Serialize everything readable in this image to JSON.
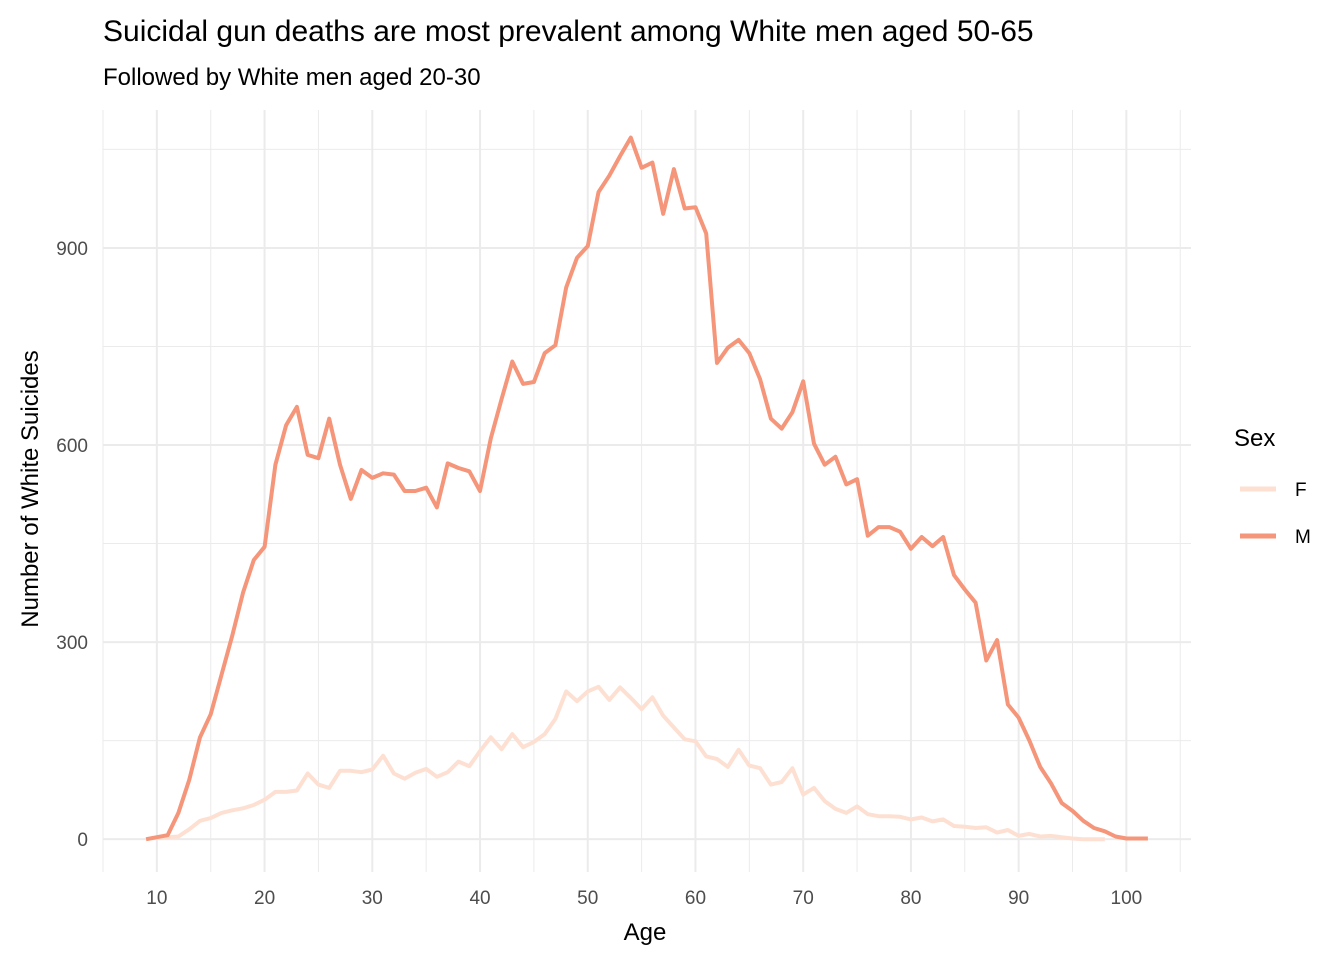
{
  "chart_data": {
    "type": "line",
    "title": "Suicidal gun deaths are most prevalent among White men aged 50-65",
    "subtitle": "Followed by White men aged 20-30",
    "xlabel": "Age",
    "ylabel": "Number of White Suicides",
    "xlim": [
      5,
      106
    ],
    "ylim": [
      -50,
      1110
    ],
    "x_ticks": [
      10,
      20,
      30,
      40,
      50,
      60,
      70,
      80,
      90,
      100
    ],
    "x_tick_labels": [
      "10",
      "20",
      "30",
      "40",
      "50",
      "60",
      "70",
      "80",
      "90",
      "100"
    ],
    "y_ticks": [
      0,
      300,
      600,
      900
    ],
    "y_tick_labels": [
      "0",
      "300",
      "600",
      "900"
    ],
    "grid": true,
    "legend": {
      "title": "Sex",
      "position": "right"
    },
    "series": [
      {
        "name": "F",
        "color": "#fde0d2",
        "x": [
          9,
          10,
          11,
          12,
          13,
          14,
          15,
          16,
          17,
          18,
          19,
          20,
          21,
          22,
          23,
          24,
          25,
          26,
          27,
          28,
          29,
          30,
          31,
          32,
          33,
          34,
          35,
          36,
          37,
          38,
          39,
          40,
          41,
          42,
          43,
          44,
          45,
          46,
          47,
          48,
          49,
          50,
          51,
          52,
          53,
          54,
          55,
          56,
          57,
          58,
          59,
          60,
          61,
          62,
          63,
          64,
          65,
          66,
          67,
          68,
          69,
          70,
          71,
          72,
          73,
          74,
          75,
          76,
          77,
          78,
          79,
          80,
          81,
          82,
          83,
          84,
          85,
          86,
          87,
          88,
          89,
          90,
          91,
          92,
          93,
          94,
          95,
          96,
          97,
          98
        ],
        "y": [
          0,
          2,
          3,
          4,
          15,
          28,
          32,
          40,
          44,
          47,
          52,
          60,
          72,
          72,
          74,
          100,
          83,
          78,
          104,
          104,
          102,
          106,
          127,
          100,
          92,
          101,
          107,
          95,
          102,
          118,
          111,
          134,
          155,
          137,
          160,
          140,
          148,
          160,
          183,
          225,
          210,
          225,
          232,
          212,
          231,
          215,
          198,
          216,
          188,
          170,
          152,
          149,
          126,
          122,
          110,
          136,
          112,
          108,
          83,
          87,
          108,
          68,
          78,
          58,
          46,
          40,
          50,
          38,
          35,
          35,
          34,
          30,
          33,
          27,
          30,
          20,
          19,
          17,
          18,
          10,
          14,
          5,
          8,
          4,
          5,
          3,
          1,
          0,
          0,
          0
        ]
      },
      {
        "name": "M",
        "color": "#f59579",
        "x": [
          9,
          10,
          11,
          12,
          13,
          14,
          15,
          16,
          17,
          18,
          19,
          20,
          21,
          22,
          23,
          24,
          25,
          26,
          27,
          28,
          29,
          30,
          31,
          32,
          33,
          34,
          35,
          36,
          37,
          38,
          39,
          40,
          41,
          42,
          43,
          44,
          45,
          46,
          47,
          48,
          49,
          50,
          51,
          52,
          53,
          54,
          55,
          56,
          57,
          58,
          59,
          60,
          61,
          62,
          63,
          64,
          65,
          66,
          67,
          68,
          69,
          70,
          71,
          72,
          73,
          74,
          75,
          76,
          77,
          78,
          79,
          80,
          81,
          82,
          83,
          84,
          85,
          86,
          87,
          88,
          89,
          90,
          91,
          92,
          93,
          94,
          95,
          96,
          97,
          98,
          99,
          100,
          101,
          102
        ],
        "y": [
          0,
          3,
          6,
          40,
          90,
          155,
          190,
          250,
          310,
          375,
          425,
          445,
          570,
          630,
          658,
          585,
          580,
          640,
          570,
          518,
          562,
          550,
          557,
          555,
          530,
          530,
          535,
          505,
          572,
          565,
          560,
          530,
          610,
          670,
          727,
          693,
          696,
          740,
          752,
          840,
          885,
          903,
          985,
          1010,
          1040,
          1068,
          1022,
          1030,
          952,
          1020,
          960,
          962,
          922,
          725,
          748,
          760,
          740,
          700,
          640,
          625,
          650,
          697,
          602,
          570,
          582,
          540,
          548,
          462,
          475,
          475,
          468,
          442,
          460,
          446,
          460,
          402,
          380,
          360,
          272,
          303,
          205,
          185,
          150,
          110,
          85,
          55,
          43,
          28,
          17,
          12,
          4,
          1,
          1,
          1
        ]
      }
    ]
  }
}
